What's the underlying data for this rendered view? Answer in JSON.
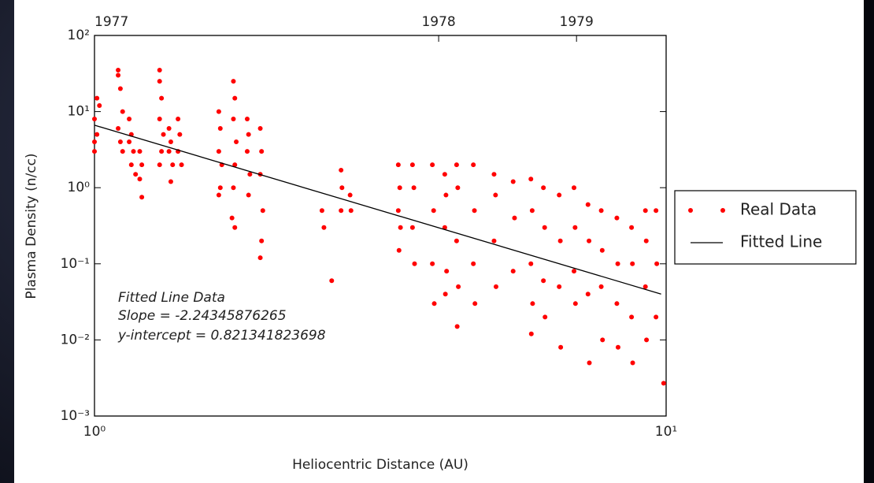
{
  "chart_data": {
    "type": "scatter",
    "xlabel": "Heliocentric Distance (AU)",
    "ylabel": "Plasma Density (n/cc)",
    "xscale": "log",
    "yscale": "log",
    "xlim": [
      1,
      10
    ],
    "ylim": [
      0.001,
      100
    ],
    "xticks": [
      {
        "value": 1,
        "label": "10⁰"
      },
      {
        "value": 10,
        "label": "10¹"
      }
    ],
    "yticks": [
      {
        "value": 0.001,
        "label": "10⁻³"
      },
      {
        "value": 0.01,
        "label": "10⁻²"
      },
      {
        "value": 0.1,
        "label": "10⁻¹"
      },
      {
        "value": 1,
        "label": "10⁰"
      },
      {
        "value": 10,
        "label": "10¹"
      },
      {
        "value": 100,
        "label": "10²"
      }
    ],
    "x2ticks": [
      {
        "value": 1,
        "label": "1977"
      },
      {
        "value": 4.0,
        "label": "1978"
      },
      {
        "value": 6.97,
        "label": "1979"
      }
    ],
    "legend": "outside right",
    "annotations": [
      "Fitted Line Data",
      "Slope = -2.24345876265",
      "y-intercept = 0.821341823698"
    ],
    "series": [
      {
        "name": "Real Data",
        "color": "#ff0000",
        "style": "markers",
        "x": [
          1.0,
          1.01,
          1.0,
          1.02,
          1.01,
          1.0,
          1.1,
          1.1,
          1.11,
          1.12,
          1.1,
          1.11,
          1.12,
          1.15,
          1.16,
          1.15,
          1.17,
          1.16,
          1.18,
          1.2,
          1.21,
          1.2,
          1.21,
          1.3,
          1.3,
          1.31,
          1.3,
          1.32,
          1.31,
          1.3,
          1.35,
          1.36,
          1.35,
          1.37,
          1.36,
          1.4,
          1.41,
          1.4,
          1.42,
          1.65,
          1.66,
          1.65,
          1.67,
          1.66,
          1.65,
          1.75,
          1.76,
          1.75,
          1.77,
          1.76,
          1.75,
          1.74,
          1.76,
          1.85,
          1.86,
          1.85,
          1.87,
          1.86,
          1.95,
          1.96,
          1.95,
          1.97,
          1.96,
          1.95,
          2.5,
          2.52,
          2.6,
          2.7,
          2.71,
          2.7,
          2.8,
          2.81,
          3.4,
          3.42,
          3.4,
          3.43,
          3.41,
          3.6,
          3.62,
          3.6,
          3.63,
          3.9,
          3.92,
          3.9,
          3.93,
          4.1,
          4.12,
          4.1,
          4.13,
          4.11,
          4.3,
          4.32,
          4.3,
          4.33,
          4.31,
          4.6,
          4.62,
          4.6,
          4.63,
          5.0,
          5.03,
          5.0,
          5.04,
          5.4,
          5.43,
          5.4,
          5.8,
          5.83,
          5.8,
          5.84,
          5.81,
          6.1,
          6.13,
          6.1,
          6.14,
          6.5,
          6.53,
          6.5,
          6.54,
          6.9,
          6.93,
          6.9,
          6.94,
          7.3,
          7.33,
          7.3,
          7.34,
          7.7,
          7.73,
          7.7,
          7.74,
          8.2,
          8.23,
          8.2,
          8.24,
          8.7,
          8.73,
          8.7,
          8.74,
          9.2,
          9.23,
          9.2,
          9.24,
          9.6,
          9.63,
          9.6,
          9.9
        ],
        "values": [
          3,
          5,
          8,
          12,
          15,
          4,
          35,
          30,
          20,
          10,
          6,
          4,
          3,
          8,
          5,
          4,
          3,
          2,
          1.5,
          3,
          2,
          1.3,
          0.75,
          35,
          25,
          15,
          8,
          5,
          3,
          2,
          6,
          4,
          3,
          2,
          1.2,
          8,
          5,
          3,
          2,
          10,
          6,
          3,
          2,
          1,
          0.8,
          25,
          15,
          8,
          4,
          2,
          1,
          0.4,
          0.3,
          8,
          5,
          3,
          1.5,
          0.8,
          6,
          3,
          1.5,
          0.5,
          0.2,
          0.12,
          0.5,
          0.3,
          0.06,
          1.7,
          1,
          0.5,
          0.8,
          0.5,
          2,
          1,
          0.5,
          0.3,
          0.15,
          2,
          1,
          0.3,
          0.1,
          2,
          0.5,
          0.1,
          0.03,
          1.5,
          0.8,
          0.3,
          0.08,
          0.04,
          2,
          1,
          0.2,
          0.05,
          0.015,
          2,
          0.5,
          0.1,
          0.03,
          1.5,
          0.8,
          0.2,
          0.05,
          1.2,
          0.4,
          0.08,
          1.3,
          0.5,
          0.1,
          0.03,
          0.012,
          1,
          0.3,
          0.06,
          0.02,
          0.8,
          0.2,
          0.05,
          0.008,
          1,
          0.3,
          0.08,
          0.03,
          0.6,
          0.2,
          0.04,
          0.005,
          0.5,
          0.15,
          0.05,
          0.01,
          0.4,
          0.1,
          0.03,
          0.008,
          0.3,
          0.1,
          0.02,
          0.005,
          0.5,
          0.2,
          0.05,
          0.01,
          0.5,
          0.1,
          0.02,
          0.0027
        ]
      },
      {
        "name": "Fitted Line",
        "color": "#000000",
        "style": "line",
        "x": [
          1,
          9.8
        ],
        "values": [
          6.62,
          0.04
        ]
      }
    ]
  }
}
